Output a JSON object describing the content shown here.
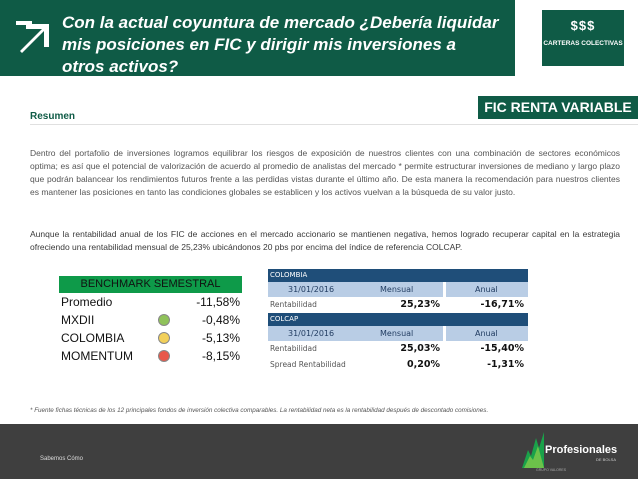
{
  "header": {
    "title": "Con la actual coyuntura de mercado ¿Debería liquidar mis posiciones en FIC y dirigir mis inversiones a otros activos?",
    "logo_text": "CARTERAS COLECTIVAS",
    "logo_glyphs": "$$$"
  },
  "section": {
    "label": "Resumen",
    "tag": "FIC RENTA VARIABLE"
  },
  "paragraphs": [
    "Dentro del portafolio de inversiones logramos equilibrar los riesgos de exposición de nuestros clientes con una combinación de sectores económicos optima; es así que el potencial de valorización de acuerdo al promedio de analistas del mercado * permite estructurar inversiones de mediano y largo plazo que podrán balancear los rendimientos futuros frente a las perdidas vistas durante el último año. De esta manera la recomendación para nuestros clientes es mantener las posiciones en tanto las condiciones globales se establicen y los activos vuelvan a la búsqueda de su valor justo.",
    "Aunque la rentabilidad anual de los FIC de acciones en el mercado accionario se mantienen negativa, hemos logrado recuperar capital en la estrategia ofreciendo una rentabilidad mensual de 25,23% ubicándonos 20 pbs por encima del índice de referencia COLCAP."
  ],
  "benchmark": {
    "title": "BENCHMARK SEMESTRAL",
    "rows": [
      {
        "label": "Promedio",
        "value": "-11,58%",
        "indicator": null
      },
      {
        "label": "MXDII",
        "value": "-0,48%",
        "indicator": "#8fc25a"
      },
      {
        "label": "COLOMBIA",
        "value": "-5,13%",
        "indicator": "#f2d05a"
      },
      {
        "label": "MOMENTUM",
        "value": "-8,15%",
        "indicator": "#e8584a"
      }
    ]
  },
  "colombia": {
    "header": "COLOMBIA",
    "date": "31/01/2016",
    "mensual_label": "Mensual",
    "anual_label": "Anual",
    "row_label": "Rentabilidad",
    "mensual": "25,23%",
    "anual": "-16,71%"
  },
  "colcap": {
    "header": "COLCAP",
    "date": "31/01/2016",
    "mensual_label": "Mensual",
    "anual_label": "Anual",
    "row_label": "Rentabilidad",
    "mensual": "25,03%",
    "anual": "-15,40%",
    "spread_label": "Spread Rentabilidad",
    "spread_mensual": "0,20%",
    "spread_anual": "-1,31%"
  },
  "footnote": "* Fuente fichas técnicas de los 12 principales fondos de inversión colectiva comparables. La rentabilidad neta es la rentabilidad después de descontado comisiones.",
  "footer": {
    "left_text": "Sabemos Cómo",
    "brand": "Profesionales",
    "brand_sub": "DE BOLSA",
    "brand_line": "GRUPO VALORES"
  }
}
